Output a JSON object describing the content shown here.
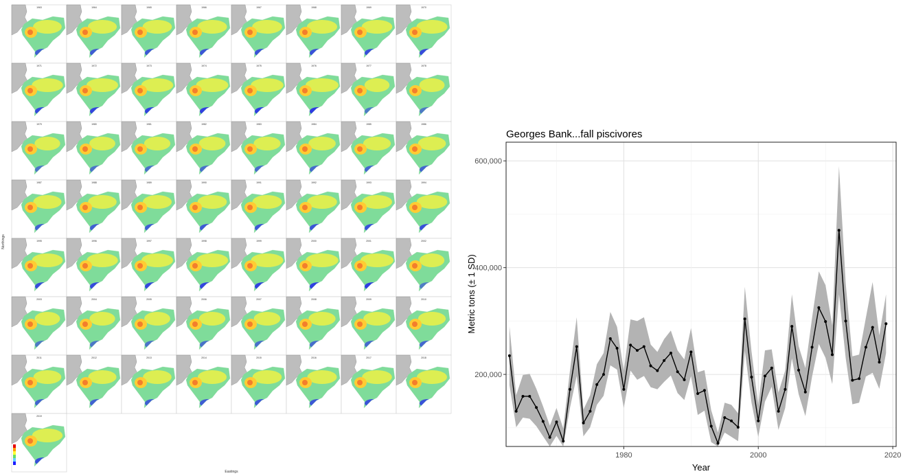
{
  "maps": {
    "ylabel": "Northings",
    "xlabel": "Eastings",
    "years": [
      1963,
      1964,
      1965,
      1966,
      1967,
      1968,
      1969,
      1970,
      1971,
      1972,
      1973,
      1974,
      1975,
      1976,
      1977,
      1978,
      1979,
      1980,
      1981,
      1982,
      1983,
      1984,
      1985,
      1986,
      1987,
      1988,
      1989,
      1990,
      1991,
      1992,
      1993,
      1994,
      1995,
      1996,
      1997,
      1998,
      1999,
      2000,
      2001,
      2002,
      2003,
      2004,
      2005,
      2006,
      2007,
      2008,
      2009,
      2010,
      2011,
      2012,
      2013,
      2014,
      2015,
      2016,
      2017,
      2018,
      2019
    ],
    "legend_colors": [
      "#1a1aff",
      "#66ccff",
      "#66dd66",
      "#ffff33",
      "#ff9900",
      "#e60000"
    ]
  },
  "chart_data": {
    "type": "line",
    "title": "Georges Bank...fall piscivores",
    "xlabel": "Year",
    "ylabel": "Metric tons (± 1 SD)",
    "xlim": [
      1962.5,
      2020.5
    ],
    "ylim": [
      65000,
      635000
    ],
    "xticks": [
      1980,
      2000,
      2020
    ],
    "yticks": [
      200000,
      400000,
      600000
    ],
    "ytick_labels": [
      "200,000",
      "400,000",
      "600,000"
    ],
    "grid": true,
    "series": [
      {
        "x": [
          1963,
          1964,
          1965,
          1966,
          1967,
          1968,
          1969,
          1970,
          1971,
          1972,
          1973,
          1974,
          1975,
          1976,
          1977,
          1978,
          1979,
          1980,
          1981,
          1982,
          1983,
          1984,
          1985,
          1986,
          1987,
          1988,
          1989,
          1990,
          1991,
          1992,
          1993,
          1994,
          1995,
          1996,
          1997,
          1998,
          1999,
          2000,
          2001,
          2002,
          2003,
          2004,
          2005,
          2006,
          2007,
          2008,
          2009,
          2010,
          2011,
          2012,
          2013,
          2014,
          2015,
          2016,
          2017,
          2018,
          2019
        ],
        "values": [
          235000,
          131000,
          159000,
          159000,
          138000,
          112000,
          82000,
          111000,
          75000,
          172000,
          252000,
          109000,
          131000,
          181000,
          200000,
          267000,
          249000,
          172000,
          255000,
          245000,
          252000,
          216000,
          207000,
          226000,
          240000,
          205000,
          190000,
          242000,
          164000,
          170000,
          103000,
          71000,
          119000,
          113000,
          101000,
          304000,
          195000,
          113000,
          197000,
          212000,
          131000,
          172000,
          290000,
          208000,
          167000,
          251000,
          325000,
          299000,
          237000,
          470000,
          300000,
          189000,
          192000,
          251000,
          288000,
          223000,
          295000
        ],
        "sd": [
          55000,
          30000,
          40000,
          42000,
          35000,
          28000,
          22000,
          26000,
          24000,
          35000,
          55000,
          25000,
          30000,
          38000,
          40000,
          50000,
          40000,
          35000,
          48000,
          55000,
          55000,
          40000,
          35000,
          40000,
          42000,
          40000,
          38000,
          45000,
          40000,
          38000,
          30000,
          20000,
          28000,
          30000,
          26000,
          60000,
          48000,
          30000,
          48000,
          35000,
          35000,
          35000,
          60000,
          45000,
          45000,
          55000,
          68000,
          68000,
          55000,
          120000,
          70000,
          45000,
          45000,
          55000,
          85000,
          50000,
          55000
        ]
      }
    ]
  }
}
